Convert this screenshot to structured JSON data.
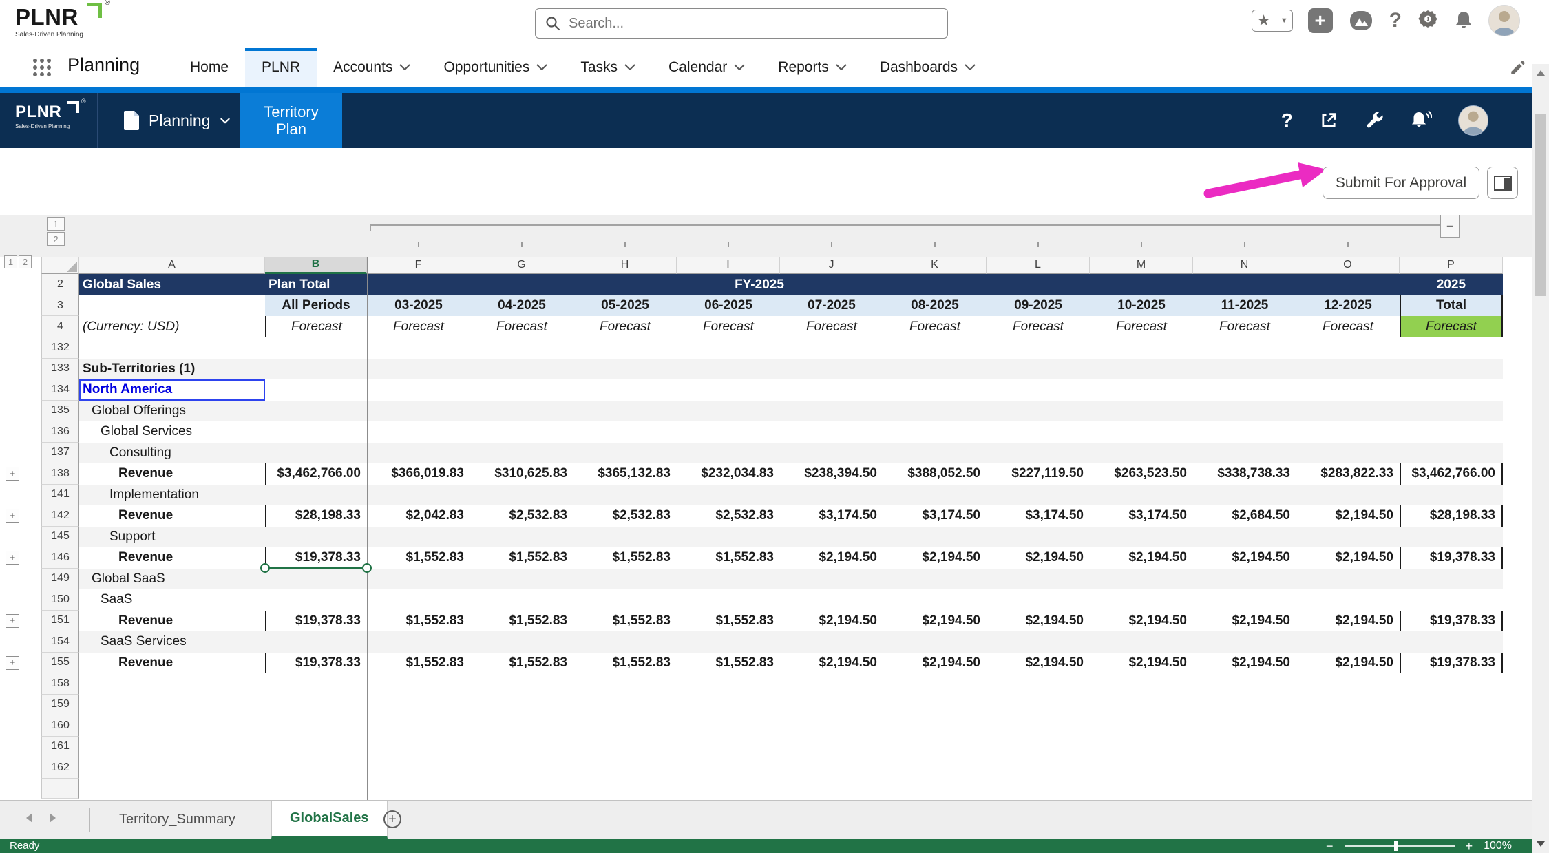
{
  "global_header": {
    "logo": {
      "text": "PLNR",
      "reg": "®",
      "tagline": "Sales-Driven Planning"
    },
    "search_placeholder": "Search...",
    "icons": [
      "favorites-star",
      "favorites-caret",
      "global-add",
      "trailhead",
      "help",
      "setup-gear",
      "notifications-bell",
      "user-avatar"
    ]
  },
  "nav": {
    "app_name": "Planning",
    "tabs": [
      {
        "label": "Home",
        "caret": false,
        "active": false
      },
      {
        "label": "PLNR",
        "caret": false,
        "active": true
      },
      {
        "label": "Accounts",
        "caret": true,
        "active": false
      },
      {
        "label": "Opportunities",
        "caret": true,
        "active": false
      },
      {
        "label": "Tasks",
        "caret": true,
        "active": false
      },
      {
        "label": "Calendar",
        "caret": true,
        "active": false
      },
      {
        "label": "Reports",
        "caret": true,
        "active": false
      },
      {
        "label": "Dashboards",
        "caret": true,
        "active": false
      }
    ]
  },
  "console": {
    "brand": "PLNR",
    "brand_reg": "®",
    "brand_tagline": "Sales-Driven Planning",
    "nav_item": "Planning",
    "active_tab": "Territory Plan",
    "icons": [
      "help",
      "open-in-new",
      "developer-tools",
      "notifications",
      "user-avatar"
    ]
  },
  "action_bar": {
    "submit_label": "Submit For Approval"
  },
  "sheet": {
    "outline": {
      "col_levels": [
        "1",
        "2"
      ],
      "row_levels": [
        "1",
        "2"
      ],
      "collapse_label": "−",
      "expand_label": "+"
    },
    "col_letters": [
      "A",
      "B",
      "F",
      "G",
      "H",
      "I",
      "J",
      "K",
      "L",
      "M",
      "N",
      "O",
      "P"
    ],
    "selected_column": "B",
    "header": {
      "title_a": "Global Sales",
      "title_b": "Plan Total",
      "fiscal_year": "FY-2025",
      "year_total_col": "2025",
      "all_periods": "All Periods",
      "total": "Total",
      "currency_note": "(Currency: USD)",
      "forecast": "Forecast",
      "months": [
        "03-2025",
        "04-2025",
        "05-2025",
        "06-2025",
        "07-2025",
        "08-2025",
        "09-2025",
        "10-2025",
        "11-2025",
        "12-2025"
      ],
      "header_row_numbers": [
        "2",
        "3",
        "4"
      ]
    },
    "rows": [
      {
        "n": "132",
        "label": "",
        "indent": 0,
        "bold": false,
        "shade": false
      },
      {
        "n": "133",
        "label": "Sub-Territories (1)",
        "indent": 0,
        "bold": true,
        "shade": true
      },
      {
        "n": "134",
        "label": "North America",
        "indent": 0,
        "bold": true,
        "shade": false,
        "selected": true
      },
      {
        "n": "135",
        "label": "Global Offerings",
        "indent": 1,
        "bold": false,
        "shade": true
      },
      {
        "n": "136",
        "label": "Global Services",
        "indent": 2,
        "bold": false,
        "shade": false
      },
      {
        "n": "137",
        "label": "Consulting",
        "indent": 3,
        "bold": false,
        "shade": true
      },
      {
        "n": "138",
        "label": "Revenue",
        "indent": 4,
        "bold": true,
        "shade": false,
        "expand": true,
        "values": [
          "$3,462,766.00",
          "$366,019.83",
          "$310,625.83",
          "$365,132.83",
          "$232,034.83",
          "$238,394.50",
          "$388,052.50",
          "$227,119.50",
          "$263,523.50",
          "$338,738.33",
          "$283,822.33",
          "$3,462,766.00"
        ]
      },
      {
        "n": "141",
        "label": "Implementation",
        "indent": 3,
        "bold": false,
        "shade": true
      },
      {
        "n": "142",
        "label": "Revenue",
        "indent": 4,
        "bold": true,
        "shade": false,
        "expand": true,
        "values": [
          "$28,198.33",
          "$2,042.83",
          "$2,532.83",
          "$2,532.83",
          "$2,532.83",
          "$3,174.50",
          "$3,174.50",
          "$3,174.50",
          "$3,174.50",
          "$2,684.50",
          "$2,194.50",
          "$28,198.33"
        ]
      },
      {
        "n": "145",
        "label": "Support",
        "indent": 3,
        "bold": false,
        "shade": true
      },
      {
        "n": "146",
        "label": "Revenue",
        "indent": 4,
        "bold": true,
        "shade": false,
        "expand": true,
        "selection_underline": true,
        "values": [
          "$19,378.33",
          "$1,552.83",
          "$1,552.83",
          "$1,552.83",
          "$1,552.83",
          "$2,194.50",
          "$2,194.50",
          "$2,194.50",
          "$2,194.50",
          "$2,194.50",
          "$2,194.50",
          "$19,378.33"
        ]
      },
      {
        "n": "149",
        "label": "Global SaaS",
        "indent": 1,
        "bold": false,
        "shade": true
      },
      {
        "n": "150",
        "label": "SaaS",
        "indent": 2,
        "bold": false,
        "shade": false
      },
      {
        "n": "151",
        "label": "Revenue",
        "indent": 4,
        "bold": true,
        "shade": false,
        "expand": true,
        "values": [
          "$19,378.33",
          "$1,552.83",
          "$1,552.83",
          "$1,552.83",
          "$1,552.83",
          "$2,194.50",
          "$2,194.50",
          "$2,194.50",
          "$2,194.50",
          "$2,194.50",
          "$2,194.50",
          "$19,378.33"
        ]
      },
      {
        "n": "154",
        "label": "SaaS Services",
        "indent": 2,
        "bold": false,
        "shade": true
      },
      {
        "n": "155",
        "label": "Revenue",
        "indent": 4,
        "bold": true,
        "shade": false,
        "expand": true,
        "values": [
          "$19,378.33",
          "$1,552.83",
          "$1,552.83",
          "$1,552.83",
          "$1,552.83",
          "$2,194.50",
          "$2,194.50",
          "$2,194.50",
          "$2,194.50",
          "$2,194.50",
          "$2,194.50",
          "$19,378.33"
        ]
      },
      {
        "n": "158",
        "label": "",
        "indent": 0,
        "bold": false,
        "shade": false
      },
      {
        "n": "159",
        "label": "",
        "indent": 0,
        "bold": false,
        "shade": false
      },
      {
        "n": "160",
        "label": "",
        "indent": 0,
        "bold": false,
        "shade": false
      },
      {
        "n": "161",
        "label": "",
        "indent": 0,
        "bold": false,
        "shade": false
      },
      {
        "n": "162",
        "label": "",
        "indent": 0,
        "bold": false,
        "shade": false
      }
    ],
    "tabs": [
      {
        "label": "Territory_Summary",
        "active": false
      },
      {
        "label": "GlobalSales",
        "active": true
      }
    ],
    "status": {
      "ready": "Ready",
      "zoom_level": "100%"
    }
  },
  "colors": {
    "navy_header": "#1F3864",
    "light_blue_header": "#DCE9F5",
    "green_total_cell": "#92D050",
    "excel_green": "#217346",
    "sf_blue": "#0176D3",
    "console_navy": "#0C2E52",
    "console_active_blue": "#0B7DD7",
    "annotation_pink": "#EB2BC2",
    "selected_cell_link": "#0000E0"
  }
}
